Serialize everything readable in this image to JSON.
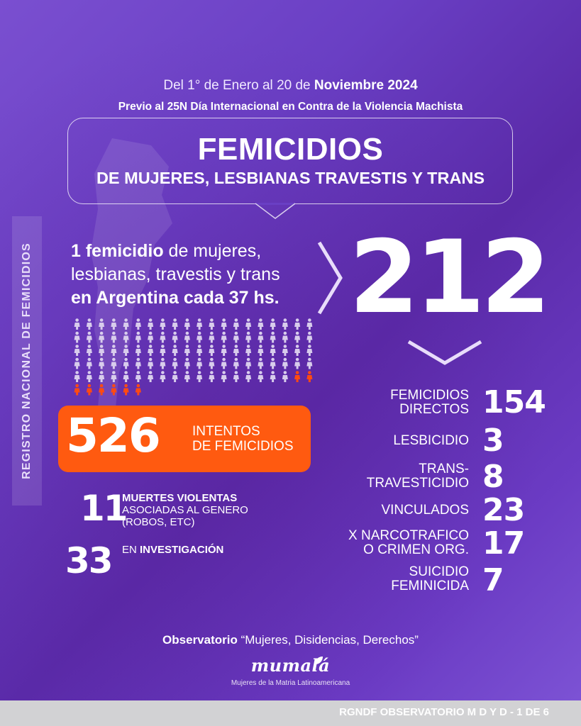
{
  "header": {
    "date_prefix": "Del",
    "date_start": "1° de Enero",
    "date_mid": "al",
    "date_end_day": "20 de",
    "date_end_month_year": "Noviembre 2024",
    "subtitle": "Previo al 25N Día Internacional en Contra de la Violencia Machista"
  },
  "title": {
    "main": "FEMICIDIOS",
    "sub": "DE  MUJERES, LESBIANAS TRAVESTIS  Y TRANS"
  },
  "side_label": "REGISTRO NACIONAL  DE FEMICIDIOS",
  "rate": {
    "bold_start": "1 femicidio",
    "text_1": " de mujeres,",
    "text_2": "lesbianas, travestis y trans",
    "bold_end": "en Argentina cada 37 hs."
  },
  "total": "212",
  "people_grid": {
    "columns": 20,
    "rows": 6,
    "base_color": "#d8ccec",
    "highlight_color": "#ff4a12"
  },
  "attempts": {
    "number": "526",
    "label_1": "INTENTOS",
    "label_2": "DE FEMICIDIOS",
    "color": "#ff5a10"
  },
  "violent_deaths": {
    "number": "11",
    "label_1": "MUERTES VIOLENTAS",
    "label_2": "ASOCIADAS AL GENERO",
    "label_3": "(ROBOS, ETC)"
  },
  "investigation": {
    "number": "33",
    "label_prefix": "EN",
    "label_bold": "INVESTIGACIÓN"
  },
  "breakdown": [
    {
      "label_1": "FEMICIDIOS",
      "label_2": "DIRECTOS",
      "value": "154"
    },
    {
      "label_1": "LESBICIDIO",
      "label_2": "",
      "value": "3"
    },
    {
      "label_1": "TRANS-",
      "label_2": "TRAVESTICIDIO",
      "value": "8"
    },
    {
      "label_1": "VINCULADOS",
      "label_2": "",
      "value": "23"
    },
    {
      "label_1": "X NARCOTRAFICO",
      "label_2": "O CRIMEN ORG.",
      "value": "17"
    },
    {
      "label_1": "SUICIDIO",
      "label_2": "FEMINICIDA",
      "value": "7"
    }
  ],
  "footer": {
    "observatory_bold": "Observatorio",
    "observatory_rest": " “Mujeres, Disidencias, Derechos”",
    "logo_name": "mumalá",
    "logo_tagline": "Mujeres de la Matria Latinoamericana",
    "page_label": "RGNDF OBSERVATORIO M D Y D - 1 DE 6"
  }
}
